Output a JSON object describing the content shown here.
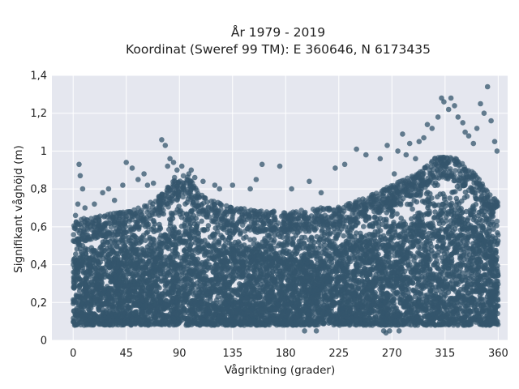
{
  "chart_data": {
    "type": "scatter",
    "title_lines": [
      "År 1979 - 2019",
      "Koordinat (Sweref 99 TM): E 360646, N 6173435"
    ],
    "xlabel": "Vågriktning (grader)",
    "ylabel": "Signifikant våghöjd (m)",
    "xlim": [
      -18,
      368
    ],
    "ylim": [
      0,
      1.4
    ],
    "xticks": [
      0,
      45,
      90,
      135,
      180,
      225,
      270,
      315,
      360
    ],
    "xtick_labels": [
      "0",
      "45",
      "90",
      "135",
      "180",
      "225",
      "270",
      "315",
      "360"
    ],
    "yticks": [
      0,
      0.2,
      0.4,
      0.6,
      0.8,
      1,
      1.2,
      1.4
    ],
    "ytick_labels": [
      "0",
      "0,2",
      "0,4",
      "0,6",
      "0,8",
      "1",
      "1,2",
      "1,4"
    ],
    "grid": true,
    "marker_color": "#34566c",
    "background_color": "#e5e7ef",
    "dense_band": {
      "x": [
        0,
        360
      ],
      "y_low": 0.08,
      "y_high_profile": [
        [
          0,
          0.55
        ],
        [
          20,
          0.58
        ],
        [
          45,
          0.6
        ],
        [
          70,
          0.66
        ],
        [
          85,
          0.78
        ],
        [
          95,
          0.8
        ],
        [
          110,
          0.68
        ],
        [
          135,
          0.62
        ],
        [
          180,
          0.6
        ],
        [
          225,
          0.63
        ],
        [
          250,
          0.68
        ],
        [
          270,
          0.74
        ],
        [
          290,
          0.8
        ],
        [
          310,
          0.9
        ],
        [
          325,
          0.88
        ],
        [
          340,
          0.8
        ],
        [
          360,
          0.65
        ]
      ]
    },
    "outlier_points": [
      [
        2,
        0.66
      ],
      [
        5,
        0.93
      ],
      [
        6,
        0.87
      ],
      [
        8,
        0.8
      ],
      [
        4,
        0.72
      ],
      [
        10,
        0.7
      ],
      [
        18,
        0.72
      ],
      [
        25,
        0.78
      ],
      [
        30,
        0.8
      ],
      [
        35,
        0.74
      ],
      [
        42,
        0.82
      ],
      [
        45,
        0.94
      ],
      [
        50,
        0.91
      ],
      [
        55,
        0.85
      ],
      [
        60,
        0.88
      ],
      [
        63,
        0.82
      ],
      [
        68,
        0.83
      ],
      [
        75,
        1.06
      ],
      [
        78,
        1.03
      ],
      [
        80,
        0.92
      ],
      [
        82,
        0.96
      ],
      [
        85,
        0.94
      ],
      [
        88,
        0.9
      ],
      [
        92,
        0.92
      ],
      [
        98,
        0.88
      ],
      [
        100,
        0.9
      ],
      [
        103,
        0.86
      ],
      [
        110,
        0.84
      ],
      [
        120,
        0.82
      ],
      [
        124,
        0.8
      ],
      [
        135,
        0.82
      ],
      [
        150,
        0.8
      ],
      [
        155,
        0.85
      ],
      [
        160,
        0.93
      ],
      [
        175,
        0.92
      ],
      [
        185,
        0.8
      ],
      [
        200,
        0.84
      ],
      [
        210,
        0.78
      ],
      [
        222,
        0.91
      ],
      [
        230,
        0.93
      ],
      [
        240,
        1.01
      ],
      [
        248,
        0.98
      ],
      [
        260,
        0.96
      ],
      [
        266,
        1.03
      ],
      [
        272,
        0.88
      ],
      [
        275,
        1.0
      ],
      [
        279,
        1.09
      ],
      [
        282,
        0.98
      ],
      [
        285,
        1.04
      ],
      [
        290,
        0.96
      ],
      [
        293,
        1.05
      ],
      [
        297,
        1.07
      ],
      [
        300,
        1.14
      ],
      [
        304,
        1.12
      ],
      [
        309,
        1.18
      ],
      [
        312,
        1.28
      ],
      [
        314,
        1.26
      ],
      [
        318,
        1.22
      ],
      [
        320,
        1.28
      ],
      [
        323,
        1.24
      ],
      [
        326,
        1.18
      ],
      [
        330,
        1.15
      ],
      [
        332,
        1.1
      ],
      [
        335,
        1.08
      ],
      [
        339,
        1.04
      ],
      [
        342,
        1.12
      ],
      [
        345,
        1.25
      ],
      [
        348,
        1.2
      ],
      [
        351,
        1.34
      ],
      [
        354,
        1.16
      ],
      [
        357,
        1.05
      ],
      [
        359,
        1.0
      ],
      [
        196,
        0.05
      ],
      [
        206,
        0.05
      ],
      [
        263,
        0.05
      ],
      [
        265,
        0.04
      ],
      [
        268,
        0.05
      ],
      [
        276,
        0.05
      ]
    ]
  }
}
